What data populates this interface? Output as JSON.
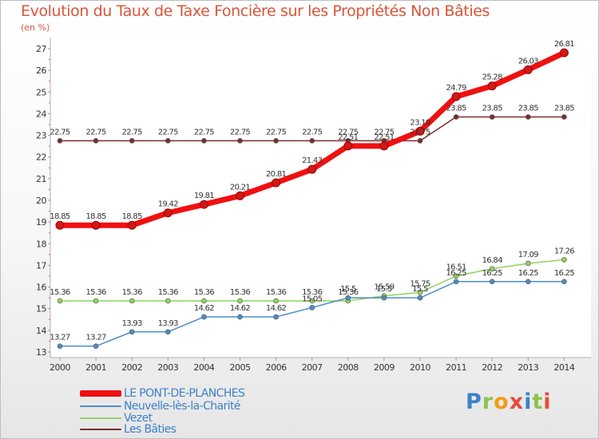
{
  "header": {
    "title": "Evolution du Taux de Taxe Foncière sur les Propriétés Non Bâties",
    "unit": "(en %)"
  },
  "logo": {
    "text": "Proxiti",
    "colors": [
      "#3c82c8",
      "#8bc34a",
      "#f39c12",
      "#e74c3c",
      "#3c82c8",
      "#8bc34a",
      "#e74c3c"
    ]
  },
  "chart_data": {
    "type": "line",
    "title": "Evolution du Taux de Taxe Foncière sur les Propriétés Non Bâties",
    "ylabel": "(en %)",
    "xlabel": "",
    "ylim": [
      13,
      27
    ],
    "yticks": [
      13,
      14,
      15,
      16,
      17,
      18,
      19,
      20,
      21,
      22,
      23,
      24,
      25,
      26,
      27
    ],
    "x": [
      "2000",
      "2001",
      "2002",
      "2003",
      "2004",
      "2005",
      "2006",
      "2007",
      "2008",
      "2009",
      "2010",
      "2011",
      "2012",
      "2013",
      "2014"
    ],
    "grid": false,
    "legend_position": "bottom-left",
    "series": [
      {
        "name": "LE PONT-DE-PLANCHES",
        "color": "#f01010",
        "values": [
          18.85,
          18.85,
          18.85,
          19.42,
          19.81,
          20.21,
          20.81,
          21.43,
          22.51,
          22.51,
          23.19,
          24.79,
          25.28,
          26.03,
          26.81
        ],
        "labels": [
          "18.85",
          "18.85",
          "18.85",
          "19.42",
          "19.81",
          "20.21",
          "20.81",
          "21.43",
          "22.51",
          "22.51",
          "23.19",
          "24.79",
          "25.28",
          "26.03",
          "26.81"
        ]
      },
      {
        "name": "Neuvelle-lès-la-Charité",
        "color": "#4d8cc8",
        "values": [
          13.27,
          13.27,
          13.93,
          13.93,
          14.62,
          14.62,
          14.62,
          15.05,
          15.5,
          15.5,
          15.5,
          16.25,
          16.25,
          16.25,
          16.25
        ],
        "labels": [
          "13.27",
          "13.27",
          "13.93",
          "13.93",
          "14.62",
          "14.62",
          "14.62",
          "15.05",
          "15.5",
          "15.5",
          "15.5",
          "16.25",
          "16.25",
          "16.25",
          "16.25"
        ]
      },
      {
        "name": "Vezet",
        "color": "#8ed35e",
        "values": [
          15.36,
          15.36,
          15.36,
          15.36,
          15.36,
          15.36,
          15.36,
          15.36,
          15.36,
          15.59,
          15.75,
          16.51,
          16.84,
          17.09,
          17.26
        ],
        "labels": [
          "15.36",
          "15.36",
          "15.36",
          "15.36",
          "15.36",
          "15.36",
          "15.36",
          "15.36",
          "15.36",
          "15.59",
          "15.75",
          "16.51",
          "16.84",
          "17.09",
          "17.26"
        ]
      },
      {
        "name": "Les Bâties",
        "color": "#7a2e2e",
        "values": [
          22.75,
          22.75,
          22.75,
          22.75,
          22.75,
          22.75,
          22.75,
          22.75,
          22.75,
          22.75,
          22.75,
          23.85,
          23.85,
          23.85,
          23.85
        ],
        "labels": [
          "22.75",
          "22.75",
          "22.75",
          "22.75",
          "22.75",
          "22.75",
          "22.75",
          "22.75",
          "22.75",
          "22.75",
          "22.75",
          "23.85",
          "23.85",
          "23.85",
          "23.85"
        ]
      }
    ]
  }
}
